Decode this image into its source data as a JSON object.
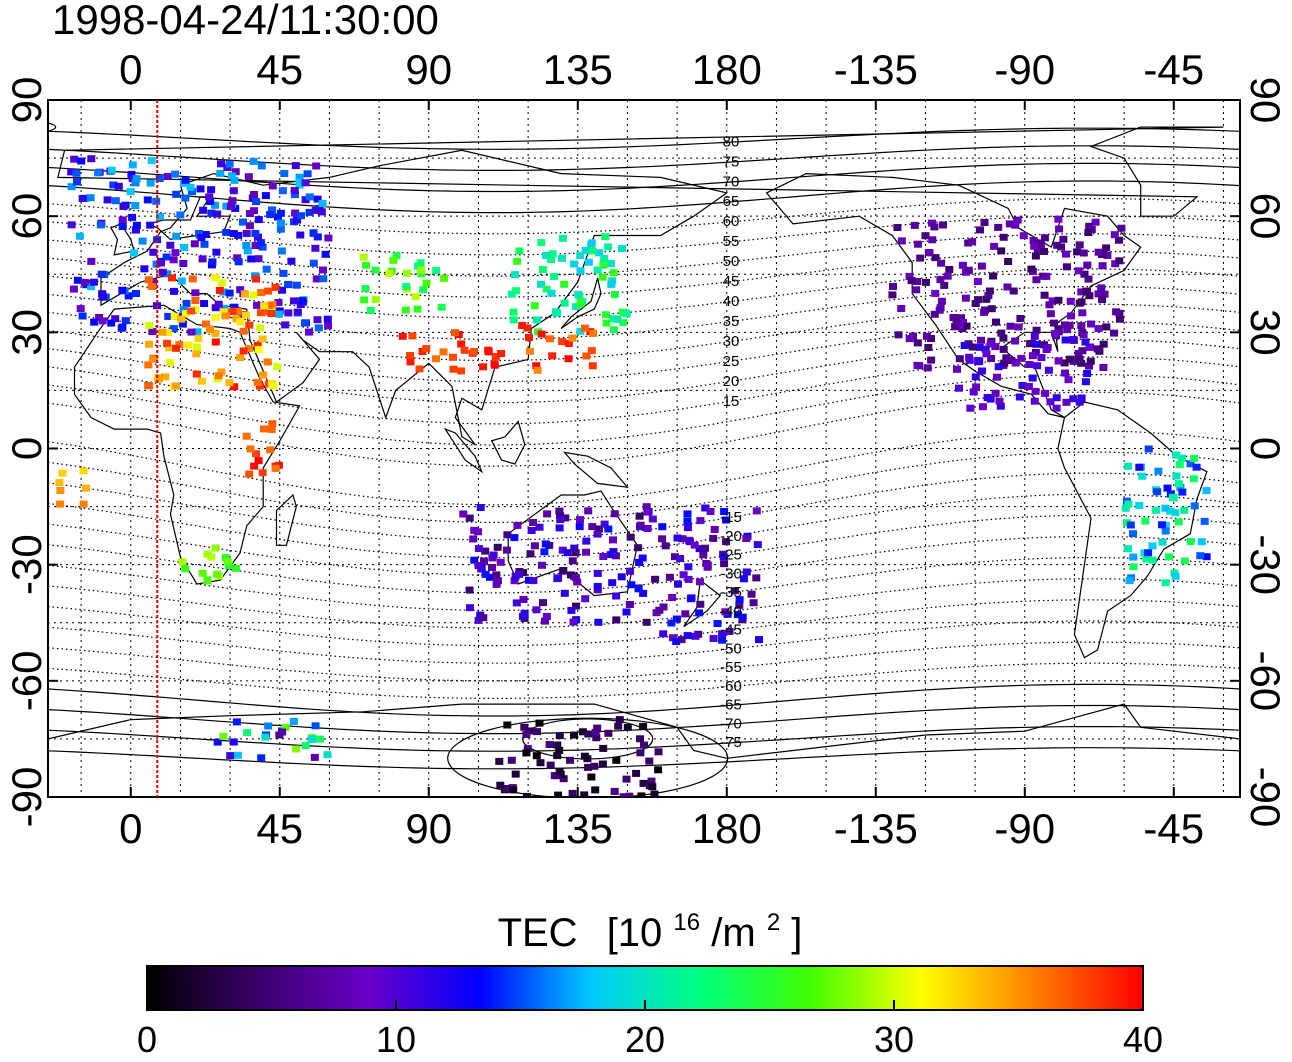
{
  "timestamp": "1998-04-24/11:30:00",
  "map": {
    "lon_tick_labels": [
      "0",
      "45",
      "90",
      "135",
      "180",
      "-135",
      "-90",
      "-45"
    ],
    "lat_tick_labels": [
      "90",
      "60",
      "30",
      "0",
      "-30",
      "-60",
      "-90"
    ],
    "lon_range": [
      -25,
      335
    ],
    "lat_range": [
      -90,
      90
    ],
    "projection": "equirectangular",
    "grid": true,
    "terminator_lon": 8,
    "terminator_color": "#e00000"
  },
  "magnetic_latitude_labels": [
    "80",
    "75",
    "70",
    "65",
    "60",
    "55",
    "50",
    "45",
    "40",
    "35",
    "30",
    "25",
    "20",
    "15",
    "-15",
    "-20",
    "-25",
    "-30",
    "-35",
    "-40",
    "-45",
    "-50",
    "-55",
    "-60",
    "-65",
    "-70",
    "-75"
  ],
  "colorbar": {
    "title": "TEC",
    "unit_base": "[10",
    "unit_exp": "16",
    "unit_mid": "/m",
    "unit_exp2": "2",
    "unit_close": "]",
    "tick_labels": [
      "0",
      "10",
      "20",
      "30",
      "40"
    ],
    "range": [
      0,
      40
    ],
    "stops": [
      "#000000",
      "#3a006a",
      "#6a00c8",
      "#0000ff",
      "#00c8ff",
      "#00ff80",
      "#40ff00",
      "#ffff00",
      "#ff8000",
      "#ff0000"
    ]
  },
  "chart_data": {
    "type": "scatter",
    "x_unit": "longitude (deg)",
    "y_unit": "latitude (deg)",
    "value_unit": "TEC 10^16/m^2",
    "regions": [
      {
        "lon": [
          -18,
          60
        ],
        "lat": [
          30,
          75
        ],
        "tec": [
          8,
          18
        ]
      },
      {
        "lon": [
          5,
          45
        ],
        "lat": [
          15,
          45
        ],
        "tec": [
          30,
          40
        ]
      },
      {
        "lon": [
          70,
          95
        ],
        "lat": [
          35,
          50
        ],
        "tec": [
          22,
          30
        ]
      },
      {
        "lon": [
          80,
          115
        ],
        "lat": [
          20,
          30
        ],
        "tec": [
          36,
          40
        ]
      },
      {
        "lon": [
          115,
          150
        ],
        "lat": [
          30,
          55
        ],
        "tec": [
          18,
          26
        ]
      },
      {
        "lon": [
          118,
          140
        ],
        "lat": [
          20,
          32
        ],
        "tec": [
          35,
          40
        ]
      },
      {
        "lon": [
          -130,
          -60
        ],
        "lat": [
          20,
          60
        ],
        "tec": [
          4,
          9
        ]
      },
      {
        "lon": [
          -110,
          -70
        ],
        "lat": [
          10,
          30
        ],
        "tec": [
          8,
          12
        ]
      },
      {
        "lon": [
          -60,
          -35
        ],
        "lat": [
          -35,
          0
        ],
        "tec": [
          12,
          24
        ]
      },
      {
        "lon": [
          100,
          160
        ],
        "lat": [
          -45,
          -15
        ],
        "tec": [
          4,
          14
        ]
      },
      {
        "lon": [
          160,
          190
        ],
        "lat": [
          -50,
          -15
        ],
        "tec": [
          5,
          14
        ]
      },
      {
        "lon": [
          15,
          35
        ],
        "lat": [
          -35,
          -25
        ],
        "tec": [
          24,
          30
        ]
      },
      {
        "lon": [
          35,
          45
        ],
        "lat": [
          -10,
          10
        ],
        "tec": [
          36,
          40
        ]
      },
      {
        "lon": [
          -22,
          -12
        ],
        "lat": [
          -15,
          -5
        ],
        "tec": [
          32,
          36
        ]
      },
      {
        "lon": [
          110,
          160
        ],
        "lat": [
          -90,
          -70
        ],
        "tec": [
          0,
          6
        ]
      },
      {
        "lon": [
          25,
          60
        ],
        "lat": [
          -80,
          -70
        ],
        "tec": [
          6,
          30
        ]
      }
    ]
  }
}
